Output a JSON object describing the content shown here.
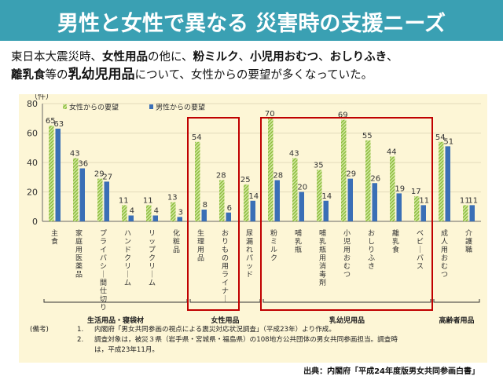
{
  "header": {
    "title": "男性と女性で異なる 災害時の支援ニーズ"
  },
  "intro": {
    "p1": "東日本大震災時、",
    "b1": "女性用品",
    "p2": "の他に、",
    "b2": "粉ミルク",
    "p3": "、",
    "b3": "小児用おむつ",
    "p4": "、",
    "b4": "おしりふき",
    "p5": "、",
    "b5": "離乳食",
    "p6": "等の",
    "b6": "乳幼児用品",
    "p7": "について、女性からの要望が多くなっていた。"
  },
  "notes": {
    "label": "(備考)",
    "n1": "1.",
    "t1": "内閣府「男女共同参画の視点による震災対応状況調査」（平成23年）より作成。",
    "n2": "2.",
    "t2": "調査対象は，被災３県（岩手県・宮城県・福島県）の108地方公共団体の男女共同参画担当。調査時",
    "t3": "は，平成23年11月。"
  },
  "source": "出典：内閣府「平成24年度版男女共同参画白書」",
  "colors": {
    "women": "#8fbf3f",
    "men": "#3a6fb6",
    "highlight": "#c00000",
    "title_bg": "#3aa0b3",
    "panel_bg": "#fdf6d6"
  },
  "chart_data": {
    "type": "bar",
    "ylabel": "（件）",
    "ylim": [
      0,
      80
    ],
    "yticks": [
      0,
      20,
      40,
      60,
      80
    ],
    "legend_position": "top",
    "categories": [
      "主食",
      "家庭用医薬品",
      "プライバシー間仕切り",
      "ハンドクリーム",
      "リップクリーム",
      "化粧品",
      "生理用品",
      "おりもの用ライナー",
      "尿漏れパッド",
      "粉ミルク",
      "哺乳瓶",
      "哺乳瓶用消毒剤",
      "小児用おむつ",
      "おしりふき",
      "離乳食",
      "ベビーバス",
      "成人用おむつ",
      "介護職"
    ],
    "series": [
      {
        "name": "女性からの要望",
        "values": [
          65,
          43,
          29,
          11,
          11,
          13,
          54,
          28,
          25,
          70,
          43,
          35,
          69,
          55,
          44,
          17,
          54,
          11
        ]
      },
      {
        "name": "男性からの要望",
        "values": [
          63,
          36,
          27,
          4,
          4,
          3,
          8,
          6,
          14,
          28,
          20,
          14,
          29,
          26,
          19,
          11,
          51,
          11
        ]
      }
    ],
    "groups": [
      {
        "name": "生活用品・寝袋材",
        "from": 0,
        "to": 5
      },
      {
        "name": "女性用品",
        "from": 6,
        "to": 8
      },
      {
        "name": "乳幼児用品",
        "from": 9,
        "to": 15
      },
      {
        "name": "高齢者用品",
        "from": 16,
        "to": 17
      }
    ],
    "highlight_boxes": [
      "女性用品",
      "乳幼児用品"
    ]
  }
}
